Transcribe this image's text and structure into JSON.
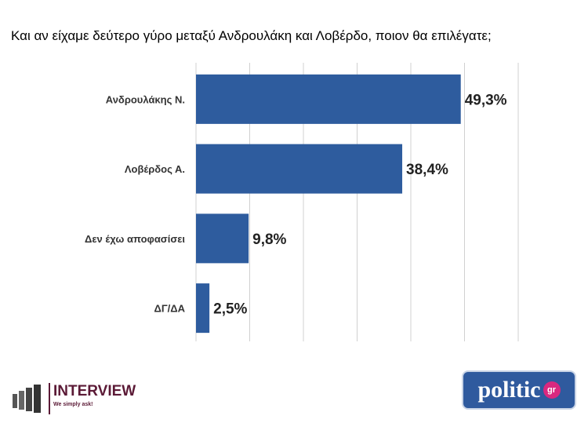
{
  "title": "Και αν είχαμε δεύτερο γύρο μεταξύ Ανδρουλάκη και Λοβέρδο, ποιον θα επιλέγατε;",
  "chart_data": {
    "type": "bar",
    "orientation": "horizontal",
    "categories": [
      "Ανδρουλάκης Ν.",
      "Λοβέρδος Α.",
      "Δεν έχω αποφασίσει",
      "ΔΓ/ΔΑ"
    ],
    "values": [
      49.3,
      38.4,
      9.8,
      2.5
    ],
    "data_labels": [
      "49,3%",
      "38,4%",
      "9,8%",
      "2,5%"
    ],
    "xlim": [
      0,
      60
    ],
    "grid": true,
    "bar_color": "#2e5c9e"
  },
  "logos": {
    "interview": "INTERVIEW",
    "interview_tagline": "We simply ask!",
    "politic": "politic",
    "politic_suffix": "gr"
  }
}
